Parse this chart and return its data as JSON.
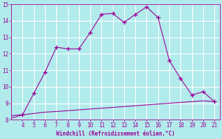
{
  "xlabel": "Windchill (Refroidissement éolien,°C)",
  "bg_color": "#b2ebeb",
  "grid_color": "#ffffff",
  "line_color": "#990099",
  "x_main": [
    3,
    4,
    5,
    6,
    7,
    8,
    9,
    10,
    11,
    12,
    13,
    14,
    15,
    16,
    17,
    18,
    19,
    20,
    21
  ],
  "y_main": [
    8.25,
    8.3,
    9.6,
    10.9,
    12.4,
    12.3,
    12.3,
    13.3,
    14.4,
    14.45,
    13.9,
    14.4,
    14.85,
    14.2,
    11.6,
    10.5,
    9.5,
    9.7,
    9.1
  ],
  "x_ref": [
    3,
    4,
    5,
    6,
    7,
    8,
    9,
    10,
    11,
    12,
    13,
    14,
    15,
    16,
    17,
    18,
    19,
    20,
    21
  ],
  "y_ref": [
    8.1,
    8.3,
    8.38,
    8.46,
    8.5,
    8.55,
    8.6,
    8.65,
    8.7,
    8.75,
    8.8,
    8.85,
    8.9,
    8.95,
    9.0,
    9.05,
    9.1,
    9.15,
    9.1
  ],
  "xlim": [
    3,
    21.5
  ],
  "ylim": [
    8,
    15
  ],
  "yticks": [
    8,
    9,
    10,
    11,
    12,
    13,
    14,
    15
  ],
  "xticks": [
    4,
    5,
    6,
    7,
    8,
    9,
    10,
    11,
    12,
    13,
    14,
    15,
    16,
    17,
    18,
    19,
    20,
    21
  ],
  "marker_x": [
    4,
    5,
    6,
    7,
    8,
    9,
    10,
    11,
    12,
    13,
    14,
    15,
    16,
    17,
    18,
    19,
    20,
    21
  ],
  "marker_y": [
    8.3,
    9.6,
    10.9,
    12.4,
    12.3,
    12.3,
    13.3,
    14.4,
    14.45,
    13.9,
    14.4,
    14.85,
    14.2,
    11.6,
    10.5,
    9.5,
    9.7,
    9.1
  ]
}
